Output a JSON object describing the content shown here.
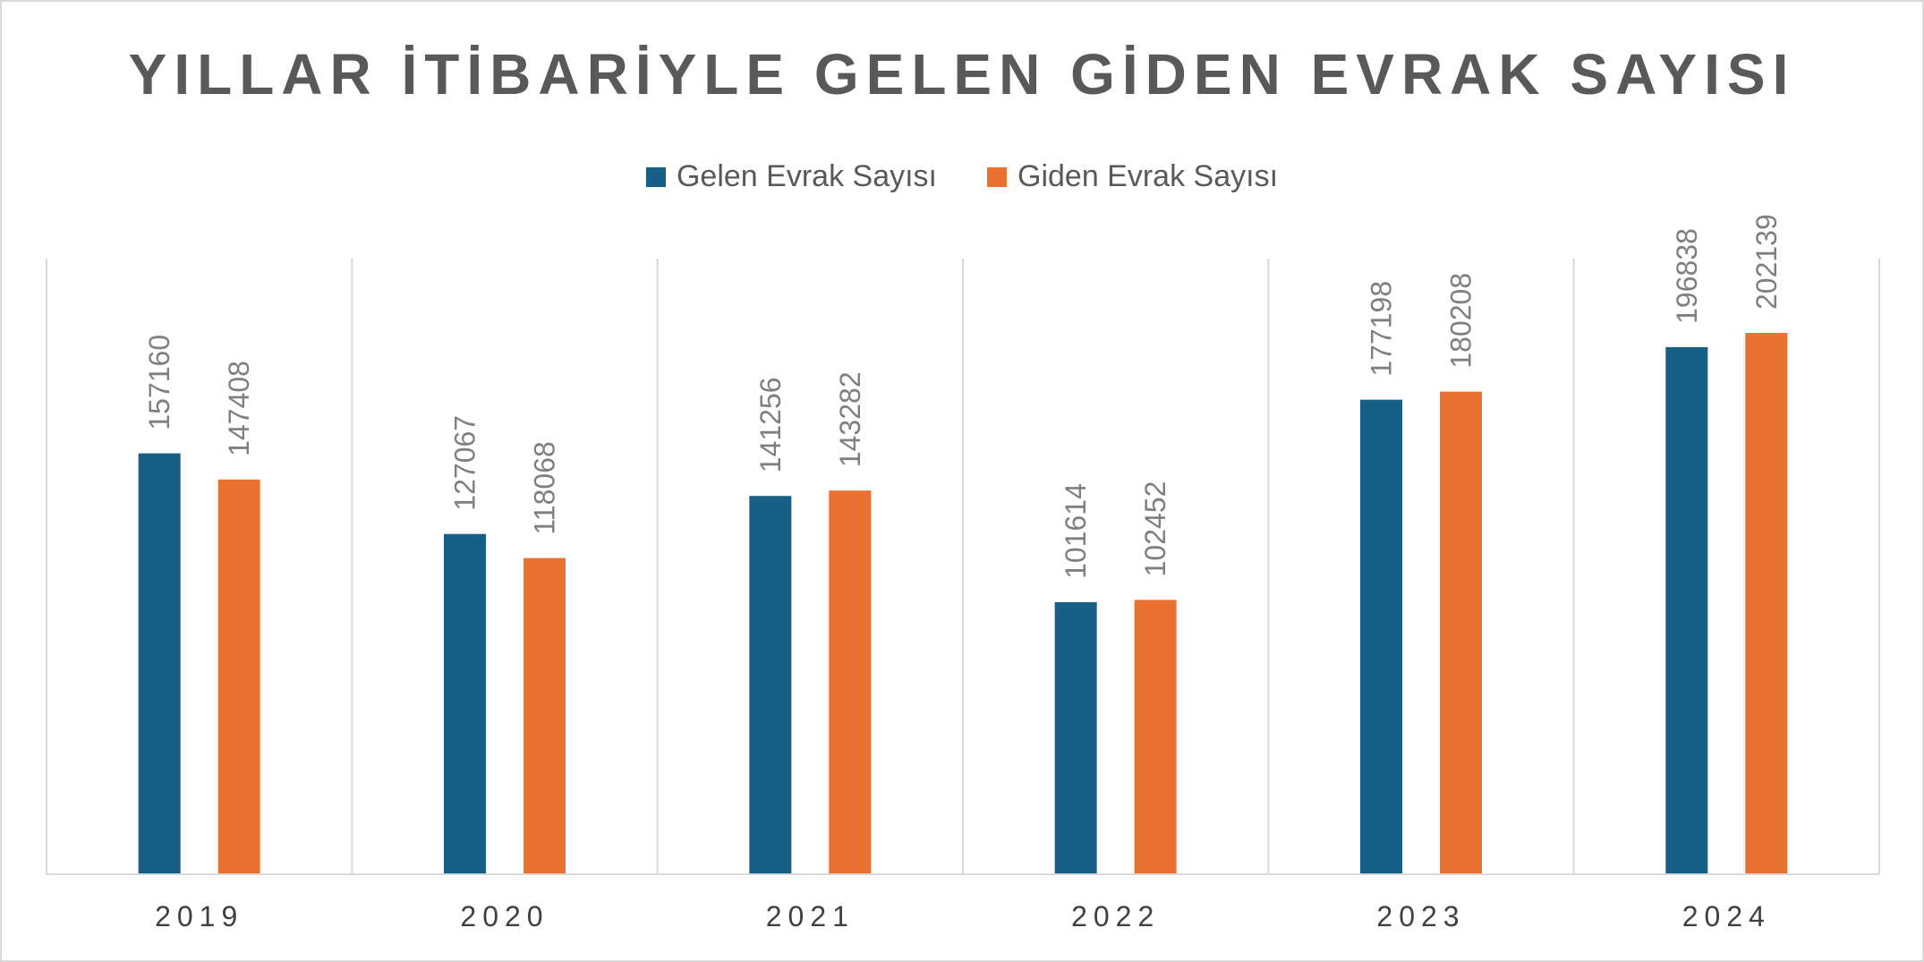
{
  "chart_data": {
    "type": "bar",
    "title": "YILLAR İTİBARİYLE GELEN GİDEN EVRAK SAYISI",
    "categories": [
      "2019",
      "2020",
      "2021",
      "2022",
      "2023",
      "2024"
    ],
    "series": [
      {
        "name": "Gelen Evrak Sayısı",
        "color": "#175f85",
        "values": [
          157160,
          127067,
          141256,
          101614,
          177198,
          196838
        ]
      },
      {
        "name": "Giden Evrak Sayısı",
        "color": "#e97132",
        "values": [
          147408,
          118068,
          143282,
          102452,
          180208,
          202139
        ]
      }
    ],
    "xlabel": "",
    "ylabel": "",
    "ylim": [
      0,
      250000
    ],
    "legend_position": "top",
    "grid": "vertical-separators",
    "data_labels": "rotated-above-bars"
  }
}
